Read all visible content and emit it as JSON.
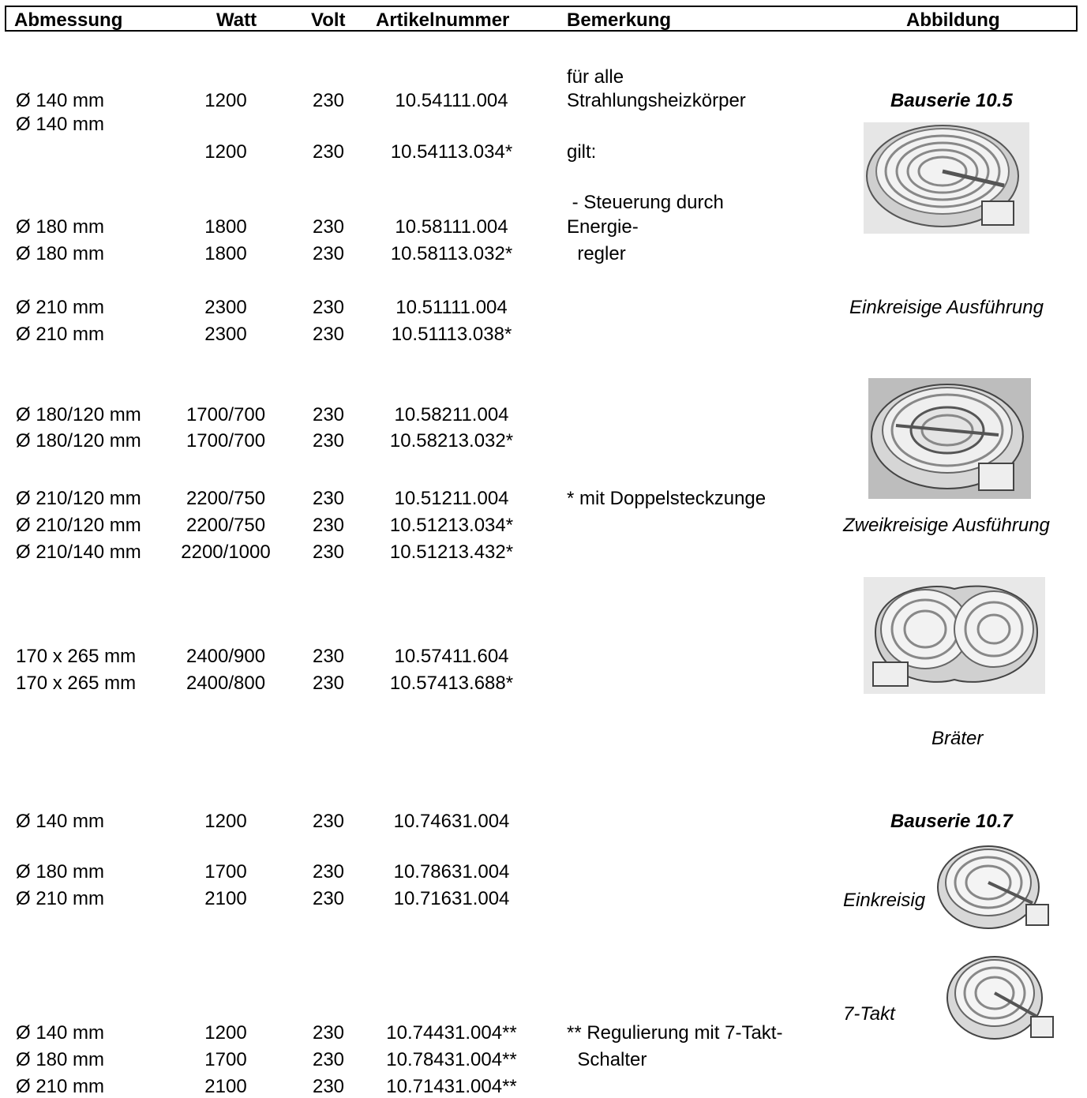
{
  "header": {
    "dimension": "Abmessung",
    "watt": "Watt",
    "volt": "Volt",
    "article": "Artikelnummer",
    "remark": "Bemerkung",
    "figure": "Abbildung"
  },
  "rows": [
    {
      "dim": "Ø 140 mm",
      "watt": "1200",
      "volt": "230",
      "art": "10.54111.004"
    },
    {
      "dim": "Ø 140 mm",
      "watt": "",
      "volt": "",
      "art": ""
    },
    {
      "dim": "",
      "watt": "1200",
      "volt": "230",
      "art": "10.54113.034*"
    },
    {
      "dim": "Ø 180 mm",
      "watt": "1800",
      "volt": "230",
      "art": "10.58111.004"
    },
    {
      "dim": "Ø 180 mm",
      "watt": "1800",
      "volt": "230",
      "art": "10.58113.032*"
    },
    {
      "dim": "Ø 210 mm",
      "watt": "2300",
      "volt": "230",
      "art": "10.51111.004"
    },
    {
      "dim": "Ø 210 mm",
      "watt": "2300",
      "volt": "230",
      "art": "10.51113.038*"
    },
    {
      "dim": "Ø 180/120 mm",
      "watt": "1700/700",
      "volt": "230",
      "art": "10.58211.004"
    },
    {
      "dim": "Ø 180/120 mm",
      "watt": "1700/700",
      "volt": "230",
      "art": "10.58213.032*"
    },
    {
      "dim": "Ø 210/120 mm",
      "watt": "2200/750",
      "volt": "230",
      "art": "10.51211.004"
    },
    {
      "dim": "Ø 210/120 mm",
      "watt": "2200/750",
      "volt": "230",
      "art": "10.51213.034*"
    },
    {
      "dim": "Ø 210/140 mm",
      "watt": "2200/1000",
      "volt": "230",
      "art": "10.51213.432*"
    },
    {
      "dim": "170 x 265 mm",
      "watt": "2400/900",
      "volt": "230",
      "art": "10.57411.604"
    },
    {
      "dim": "170 x 265 mm",
      "watt": "2400/800",
      "volt": "230",
      "art": "10.57413.688*"
    },
    {
      "dim": "Ø 140 mm",
      "watt": "1200",
      "volt": "230",
      "art": "10.74631.004"
    },
    {
      "dim": "Ø 180 mm",
      "watt": "1700",
      "volt": "230",
      "art": "10.78631.004"
    },
    {
      "dim": "Ø 210 mm",
      "watt": "2100",
      "volt": "230",
      "art": "10.71631.004"
    },
    {
      "dim": "Ø 140 mm",
      "watt": "1200",
      "volt": "230",
      "art": "10.74431.004**"
    },
    {
      "dim": "Ø 180 mm",
      "watt": "1700",
      "volt": "230",
      "art": "10.78431.004**"
    },
    {
      "dim": "Ø 210 mm",
      "watt": "2100",
      "volt": "230",
      "art": "10.71431.004**"
    }
  ],
  "remarks": {
    "r1": "für alle",
    "r2": "Strahlungsheizkörper",
    "r3": "gilt:",
    "r4": " - Steuerung durch",
    "r5": "Energie-",
    "r6": "  regler",
    "r7": "* mit Doppelsteckzunge",
    "r8": "** Regulierung mit 7-Takt-",
    "r9": "  Schalter"
  },
  "figures": {
    "series_105": "Bauserie 10.5",
    "single_circuit_version": "Einkreisige Ausführung",
    "dual_circuit_version": "Zweikreisige Ausführung",
    "roaster": "Bräter",
    "series_107": "Bauserie 10.7",
    "single_circuit": "Einkreisig",
    "seven_step": "7-Takt"
  }
}
